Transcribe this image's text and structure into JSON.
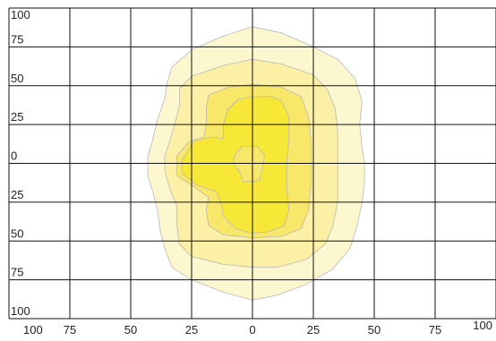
{
  "chart_data": {
    "type": "contour",
    "title": "",
    "xlabel": "",
    "ylabel": "",
    "xlim": [
      -100,
      100
    ],
    "ylim": [
      -100,
      100
    ],
    "grid": true,
    "legend": "none",
    "x_ticks": [
      -100,
      -75,
      -50,
      -25,
      0,
      25,
      50,
      75,
      100
    ],
    "x_tick_labels": [
      "100",
      "75",
      "50",
      "25",
      "0",
      "25",
      "50",
      "75",
      "100"
    ],
    "y_ticks": [
      100,
      75,
      50,
      25,
      0,
      -25,
      -50,
      -75,
      -100
    ],
    "y_tick_labels": [
      "100",
      "75",
      "50",
      "25",
      "0",
      "25",
      "50",
      "75",
      "100"
    ],
    "colors": {
      "grid": "#111111",
      "contour_stroke": "#b8b8b8",
      "level_1": "#fdf7d0",
      "level_2": "#fbf0a6",
      "level_3": "#f9e769",
      "level_4": "#f7e736"
    },
    "contours": [
      {
        "level": 1,
        "points": [
          [
            0,
            88
          ],
          [
            12,
            84
          ],
          [
            25,
            75
          ],
          [
            35,
            67
          ],
          [
            42,
            55
          ],
          [
            45,
            40
          ],
          [
            44,
            25
          ],
          [
            45,
            10
          ],
          [
            46,
            0
          ],
          [
            46,
            -12
          ],
          [
            45,
            -25
          ],
          [
            43,
            -40
          ],
          [
            40,
            -55
          ],
          [
            33,
            -68
          ],
          [
            22,
            -78
          ],
          [
            10,
            -85
          ],
          [
            0,
            -88
          ],
          [
            -12,
            -83
          ],
          [
            -25,
            -75
          ],
          [
            -33,
            -67
          ],
          [
            -36,
            -55
          ],
          [
            -38,
            -42
          ],
          [
            -39,
            -30
          ],
          [
            -41,
            -18
          ],
          [
            -43,
            -8
          ],
          [
            -43,
            4
          ],
          [
            -41,
            15
          ],
          [
            -39,
            28
          ],
          [
            -36,
            42
          ],
          [
            -35,
            52
          ],
          [
            -33,
            62
          ],
          [
            -25,
            73
          ],
          [
            -12,
            82
          ]
        ]
      },
      {
        "level": 2,
        "points": [
          [
            0,
            67
          ],
          [
            12,
            64
          ],
          [
            25,
            57
          ],
          [
            31,
            47
          ],
          [
            34,
            35
          ],
          [
            35,
            20
          ],
          [
            35,
            5
          ],
          [
            35,
            -10
          ],
          [
            35,
            -25
          ],
          [
            33,
            -40
          ],
          [
            30,
            -52
          ],
          [
            22,
            -62
          ],
          [
            10,
            -67
          ],
          [
            0,
            -67
          ],
          [
            -12,
            -65
          ],
          [
            -25,
            -60
          ],
          [
            -30,
            -52
          ],
          [
            -31,
            -40
          ],
          [
            -31,
            -28
          ],
          [
            -34,
            -16
          ],
          [
            -36,
            -5
          ],
          [
            -36,
            5
          ],
          [
            -34,
            14
          ],
          [
            -32,
            25
          ],
          [
            -30,
            37
          ],
          [
            -30,
            48
          ],
          [
            -25,
            56
          ],
          [
            -12,
            63
          ]
        ]
      },
      {
        "level": 3,
        "points": [
          [
            0,
            51
          ],
          [
            12,
            49
          ],
          [
            20,
            43
          ],
          [
            23,
            30
          ],
          [
            24,
            15
          ],
          [
            24,
            0
          ],
          [
            24,
            -15
          ],
          [
            23,
            -30
          ],
          [
            20,
            -42
          ],
          [
            12,
            -47
          ],
          [
            0,
            -48
          ],
          [
            -12,
            -46
          ],
          [
            -18,
            -40
          ],
          [
            -19,
            -30
          ],
          [
            -18,
            -22
          ],
          [
            -24,
            -15
          ],
          [
            -31,
            -8
          ],
          [
            -31,
            5
          ],
          [
            -26,
            14
          ],
          [
            -20,
            17
          ],
          [
            -19,
            25
          ],
          [
            -19,
            35
          ],
          [
            -18,
            44
          ],
          [
            -10,
            49
          ]
        ]
      },
      {
        "level": 4,
        "points": [
          [
            0,
            43
          ],
          [
            8,
            43
          ],
          [
            12,
            40
          ],
          [
            15,
            30
          ],
          [
            15,
            15
          ],
          [
            14,
            0
          ],
          [
            14,
            -15
          ],
          [
            15,
            -30
          ],
          [
            13,
            -40
          ],
          [
            7,
            -44
          ],
          [
            0,
            -45
          ],
          [
            -7,
            -42
          ],
          [
            -12,
            -34
          ],
          [
            -13,
            -25
          ],
          [
            -15,
            -18
          ],
          [
            -23,
            -14
          ],
          [
            -29,
            -6
          ],
          [
            -29,
            2
          ],
          [
            -24,
            14
          ],
          [
            -17,
            17
          ],
          [
            -12,
            16
          ],
          [
            -12,
            25
          ],
          [
            -10,
            35
          ],
          [
            -6,
            41
          ]
        ]
      },
      {
        "level": 3,
        "points": [
          [
            -4,
            11
          ],
          [
            2,
            11
          ],
          [
            5,
            5
          ],
          [
            4,
            -3
          ],
          [
            3,
            -11
          ],
          [
            -4,
            -12
          ],
          [
            -5,
            -6
          ],
          [
            -8,
            0
          ],
          [
            -7,
            6
          ]
        ]
      }
    ]
  }
}
